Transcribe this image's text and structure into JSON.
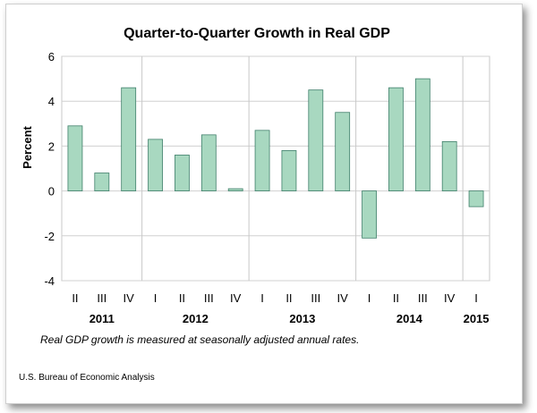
{
  "chart_data": {
    "type": "bar",
    "title": "Quarter-to-Quarter Growth in Real GDP",
    "ylabel": "Percent",
    "ylim": [
      -4,
      6
    ],
    "yticks": [
      -4,
      -2,
      0,
      2,
      4,
      6
    ],
    "grid": true,
    "bar_color": "#a8d8c0",
    "bar_stroke": "#3f7f6a",
    "categories": [
      "II",
      "III",
      "IV",
      "I",
      "II",
      "III",
      "IV",
      "I",
      "II",
      "III",
      "IV",
      "I",
      "II",
      "III",
      "IV",
      "I"
    ],
    "values": [
      2.9,
      0.8,
      4.6,
      2.3,
      1.6,
      2.5,
      0.1,
      2.7,
      1.8,
      4.5,
      3.5,
      -2.1,
      4.6,
      5.0,
      2.2,
      -0.7
    ],
    "years": [
      {
        "label": "2011",
        "start": 0,
        "end": 2
      },
      {
        "label": "2012",
        "start": 3,
        "end": 6
      },
      {
        "label": "2013",
        "start": 7,
        "end": 10
      },
      {
        "label": "2014",
        "start": 11,
        "end": 14
      },
      {
        "label": "2015",
        "start": 15,
        "end": 15
      }
    ]
  },
  "note": "Real GDP growth is measured at seasonally adjusted annual rates.",
  "source": "U.S. Bureau of Economic Analysis"
}
